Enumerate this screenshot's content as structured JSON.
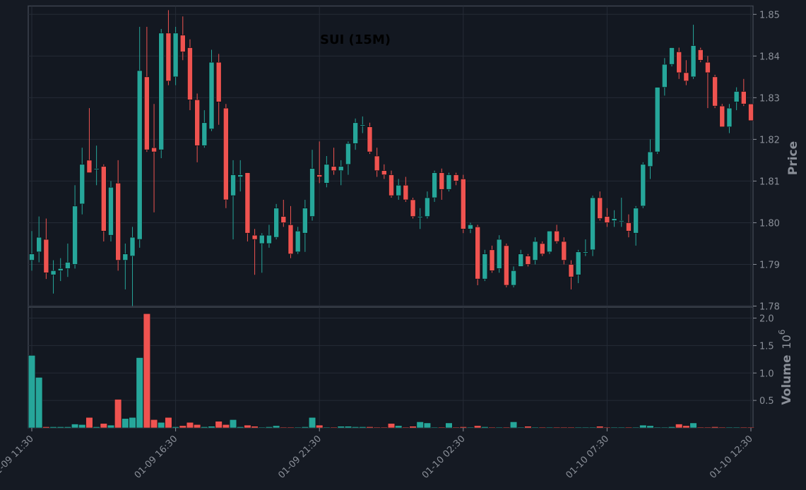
{
  "chart_data": {
    "type": "candlestick",
    "title": "SUI (15M)",
    "price_label": "Price",
    "volume_label": "Volume",
    "volume_exponent_base": "10",
    "volume_exponent_power": "6",
    "x_tick_labels": [
      "01-09 11:30",
      "01-09 16:30",
      "01-09 21:30",
      "01-10 02:30",
      "01-10 07:30",
      "01-10 12:30"
    ],
    "x_tick_index": [
      0,
      20,
      40,
      60,
      80,
      100
    ],
    "price_ylim": [
      1.78,
      1.852
    ],
    "price_yticks": [
      1.78,
      1.79,
      1.8,
      1.81,
      1.82,
      1.83,
      1.84,
      1.85
    ],
    "volume_ylim": [
      0,
      2.2
    ],
    "volume_yticks": [
      0.5,
      1.0,
      1.5,
      2.0
    ],
    "colors": {
      "up": "#26a69a",
      "down": "#ef5350"
    },
    "ohlc": [
      [
        1.791,
        1.798,
        1.7885,
        1.7925
      ],
      [
        1.793,
        1.8015,
        1.7905,
        1.7965
      ],
      [
        1.796,
        1.801,
        1.7865,
        1.788
      ],
      [
        1.7875,
        1.791,
        1.783,
        1.7885
      ],
      [
        1.7885,
        1.7915,
        1.786,
        1.789
      ],
      [
        1.789,
        1.795,
        1.787,
        1.7905
      ],
      [
        1.79,
        1.809,
        1.789,
        1.804
      ],
      [
        1.8045,
        1.818,
        1.802,
        1.814
      ],
      [
        1.815,
        1.8275,
        1.812,
        1.812
      ],
      [
        1.813,
        1.8185,
        1.809,
        1.813
      ],
      [
        1.8135,
        1.814,
        1.7955,
        1.798
      ],
      [
        1.797,
        1.81,
        1.7955,
        1.8085
      ],
      [
        1.8095,
        1.815,
        1.7885,
        1.791
      ],
      [
        1.791,
        1.795,
        1.784,
        1.7925
      ],
      [
        1.792,
        1.799,
        1.78,
        1.7965
      ],
      [
        1.796,
        1.847,
        1.794,
        1.8365
      ],
      [
        1.835,
        1.847,
        1.817,
        1.8175
      ],
      [
        1.818,
        1.8285,
        1.8025,
        1.817
      ],
      [
        1.8175,
        1.8465,
        1.8155,
        1.8455
      ],
      [
        1.8455,
        1.851,
        1.833,
        1.834
      ],
      [
        1.835,
        1.847,
        1.833,
        1.8455
      ],
      [
        1.845,
        1.8495,
        1.839,
        1.841
      ],
      [
        1.842,
        1.844,
        1.827,
        1.8295
      ],
      [
        1.8295,
        1.831,
        1.8145,
        1.8185
      ],
      [
        1.8185,
        1.827,
        1.818,
        1.824
      ],
      [
        1.8225,
        1.8415,
        1.822,
        1.8385
      ],
      [
        1.8385,
        1.8405,
        1.8235,
        1.829
      ],
      [
        1.8275,
        1.8285,
        1.8035,
        1.8055
      ],
      [
        1.8065,
        1.815,
        1.796,
        1.8115
      ],
      [
        1.811,
        1.815,
        1.8075,
        1.8115
      ],
      [
        1.812,
        1.812,
        1.7955,
        1.7975
      ],
      [
        1.797,
        1.7985,
        1.7875,
        1.796
      ],
      [
        1.795,
        1.7975,
        1.788,
        1.797
      ],
      [
        1.795,
        1.7995,
        1.794,
        1.797
      ],
      [
        1.7965,
        1.8045,
        1.796,
        1.8035
      ],
      [
        1.8015,
        1.8055,
        1.799,
        1.8
      ],
      [
        1.7995,
        1.804,
        1.7915,
        1.7925
      ],
      [
        1.793,
        1.799,
        1.7925,
        1.798
      ],
      [
        1.7975,
        1.8055,
        1.793,
        1.8035
      ],
      [
        1.8015,
        1.8175,
        1.8005,
        1.813
      ],
      [
        1.8115,
        1.8195,
        1.8095,
        1.811
      ],
      [
        1.8095,
        1.816,
        1.8085,
        1.814
      ],
      [
        1.8135,
        1.818,
        1.8115,
        1.8125
      ],
      [
        1.8125,
        1.815,
        1.809,
        1.8135
      ],
      [
        1.814,
        1.8195,
        1.8115,
        1.819
      ],
      [
        1.819,
        1.825,
        1.8175,
        1.824
      ],
      [
        1.8235,
        1.8255,
        1.8215,
        1.8235
      ],
      [
        1.823,
        1.824,
        1.8165,
        1.817
      ],
      [
        1.816,
        1.818,
        1.811,
        1.8125
      ],
      [
        1.8125,
        1.814,
        1.8105,
        1.8115
      ],
      [
        1.8115,
        1.8125,
        1.806,
        1.8065
      ],
      [
        1.8065,
        1.8105,
        1.8055,
        1.809
      ],
      [
        1.809,
        1.811,
        1.805,
        1.8055
      ],
      [
        1.8055,
        1.806,
        1.801,
        1.8015
      ],
      [
        1.8015,
        1.8035,
        1.7985,
        1.8015
      ],
      [
        1.8015,
        1.8075,
        1.801,
        1.806
      ],
      [
        1.806,
        1.8125,
        1.805,
        1.812
      ],
      [
        1.812,
        1.813,
        1.8055,
        1.808
      ],
      [
        1.808,
        1.812,
        1.8075,
        1.8115
      ],
      [
        1.8115,
        1.812,
        1.809,
        1.81
      ],
      [
        1.8105,
        1.8115,
        1.7975,
        1.7985
      ],
      [
        1.7985,
        1.8,
        1.7975,
        1.7995
      ],
      [
        1.799,
        1.7995,
        1.785,
        1.7865
      ],
      [
        1.7865,
        1.7935,
        1.786,
        1.7925
      ],
      [
        1.7935,
        1.7945,
        1.788,
        1.7885
      ],
      [
        1.789,
        1.797,
        1.788,
        1.796
      ],
      [
        1.7945,
        1.795,
        1.7845,
        1.785
      ],
      [
        1.785,
        1.7895,
        1.7845,
        1.7885
      ],
      [
        1.7895,
        1.7935,
        1.7895,
        1.7925
      ],
      [
        1.792,
        1.7925,
        1.7895,
        1.79
      ],
      [
        1.791,
        1.7965,
        1.79,
        1.7955
      ],
      [
        1.795,
        1.7955,
        1.792,
        1.7925
      ],
      [
        1.793,
        1.798,
        1.7925,
        1.798
      ],
      [
        1.798,
        1.7995,
        1.795,
        1.7955
      ],
      [
        1.7955,
        1.7965,
        1.79,
        1.791
      ],
      [
        1.79,
        1.791,
        1.784,
        1.787
      ],
      [
        1.7875,
        1.7935,
        1.7855,
        1.793
      ],
      [
        1.793,
        1.796,
        1.792,
        1.793
      ],
      [
        1.7935,
        1.8065,
        1.792,
        1.806
      ],
      [
        1.806,
        1.8075,
        1.8005,
        1.801
      ],
      [
        1.8015,
        1.8035,
        1.799,
        1.8
      ],
      [
        1.8005,
        1.803,
        1.799,
        1.801
      ],
      [
        1.8005,
        1.806,
        1.799,
        1.8005
      ],
      [
        1.8,
        1.802,
        1.7965,
        1.798
      ],
      [
        1.7975,
        1.804,
        1.7945,
        1.8035
      ],
      [
        1.804,
        1.8145,
        1.8035,
        1.814
      ],
      [
        1.8135,
        1.82,
        1.8105,
        1.817
      ],
      [
        1.817,
        1.8325,
        1.8165,
        1.8325
      ],
      [
        1.8325,
        1.8395,
        1.8305,
        1.838
      ],
      [
        1.838,
        1.842,
        1.8375,
        1.842
      ],
      [
        1.841,
        1.842,
        1.8345,
        1.836
      ],
      [
        1.836,
        1.839,
        1.833,
        1.834
      ],
      [
        1.835,
        1.8475,
        1.8345,
        1.8425
      ],
      [
        1.8415,
        1.842,
        1.8385,
        1.839
      ],
      [
        1.8385,
        1.84,
        1.8275,
        1.836
      ],
      [
        1.835,
        1.8355,
        1.8275,
        1.828
      ],
      [
        1.828,
        1.8285,
        1.823,
        1.823
      ],
      [
        1.823,
        1.8285,
        1.8215,
        1.8275
      ],
      [
        1.829,
        1.8325,
        1.827,
        1.8315
      ],
      [
        1.8315,
        1.8345,
        1.828,
        1.8285
      ],
      [
        1.8285,
        1.8285,
        1.8245,
        1.8245
      ]
    ],
    "volume": [
      1.32,
      0.92,
      0.02,
      0.02,
      0.02,
      0.02,
      0.07,
      0.06,
      0.19,
      0.02,
      0.08,
      0.05,
      0.52,
      0.17,
      0.19,
      1.28,
      2.08,
      0.15,
      0.1,
      0.19,
      0.02,
      0.04,
      0.1,
      0.06,
      0.02,
      0.03,
      0.12,
      0.06,
      0.15,
      0.02,
      0.05,
      0.03,
      0.01,
      0.02,
      0.04,
      0.01,
      0.01,
      0.01,
      0.02,
      0.19,
      0.05,
      0.01,
      0.01,
      0.03,
      0.03,
      0.02,
      0.02,
      0.02,
      0.01,
      0.01,
      0.08,
      0.04,
      0.01,
      0.03,
      0.11,
      0.09,
      0.01,
      0.01,
      0.09,
      0.01,
      0.02,
      0.01,
      0.04,
      0.02,
      0.01,
      0.01,
      0.01,
      0.11,
      0.01,
      0.03,
      0.01,
      0.01,
      0.01,
      0.01,
      0.01,
      0.01,
      0.01,
      0.01,
      0.01,
      0.03,
      0.01,
      0.01,
      0.01,
      0.01,
      0.01,
      0.05,
      0.04,
      0.01,
      0.01,
      0.02,
      0.07,
      0.04,
      0.09,
      0.01,
      0.01,
      0.02,
      0.01,
      0.01,
      0.01,
      0.01,
      0.01
    ]
  }
}
